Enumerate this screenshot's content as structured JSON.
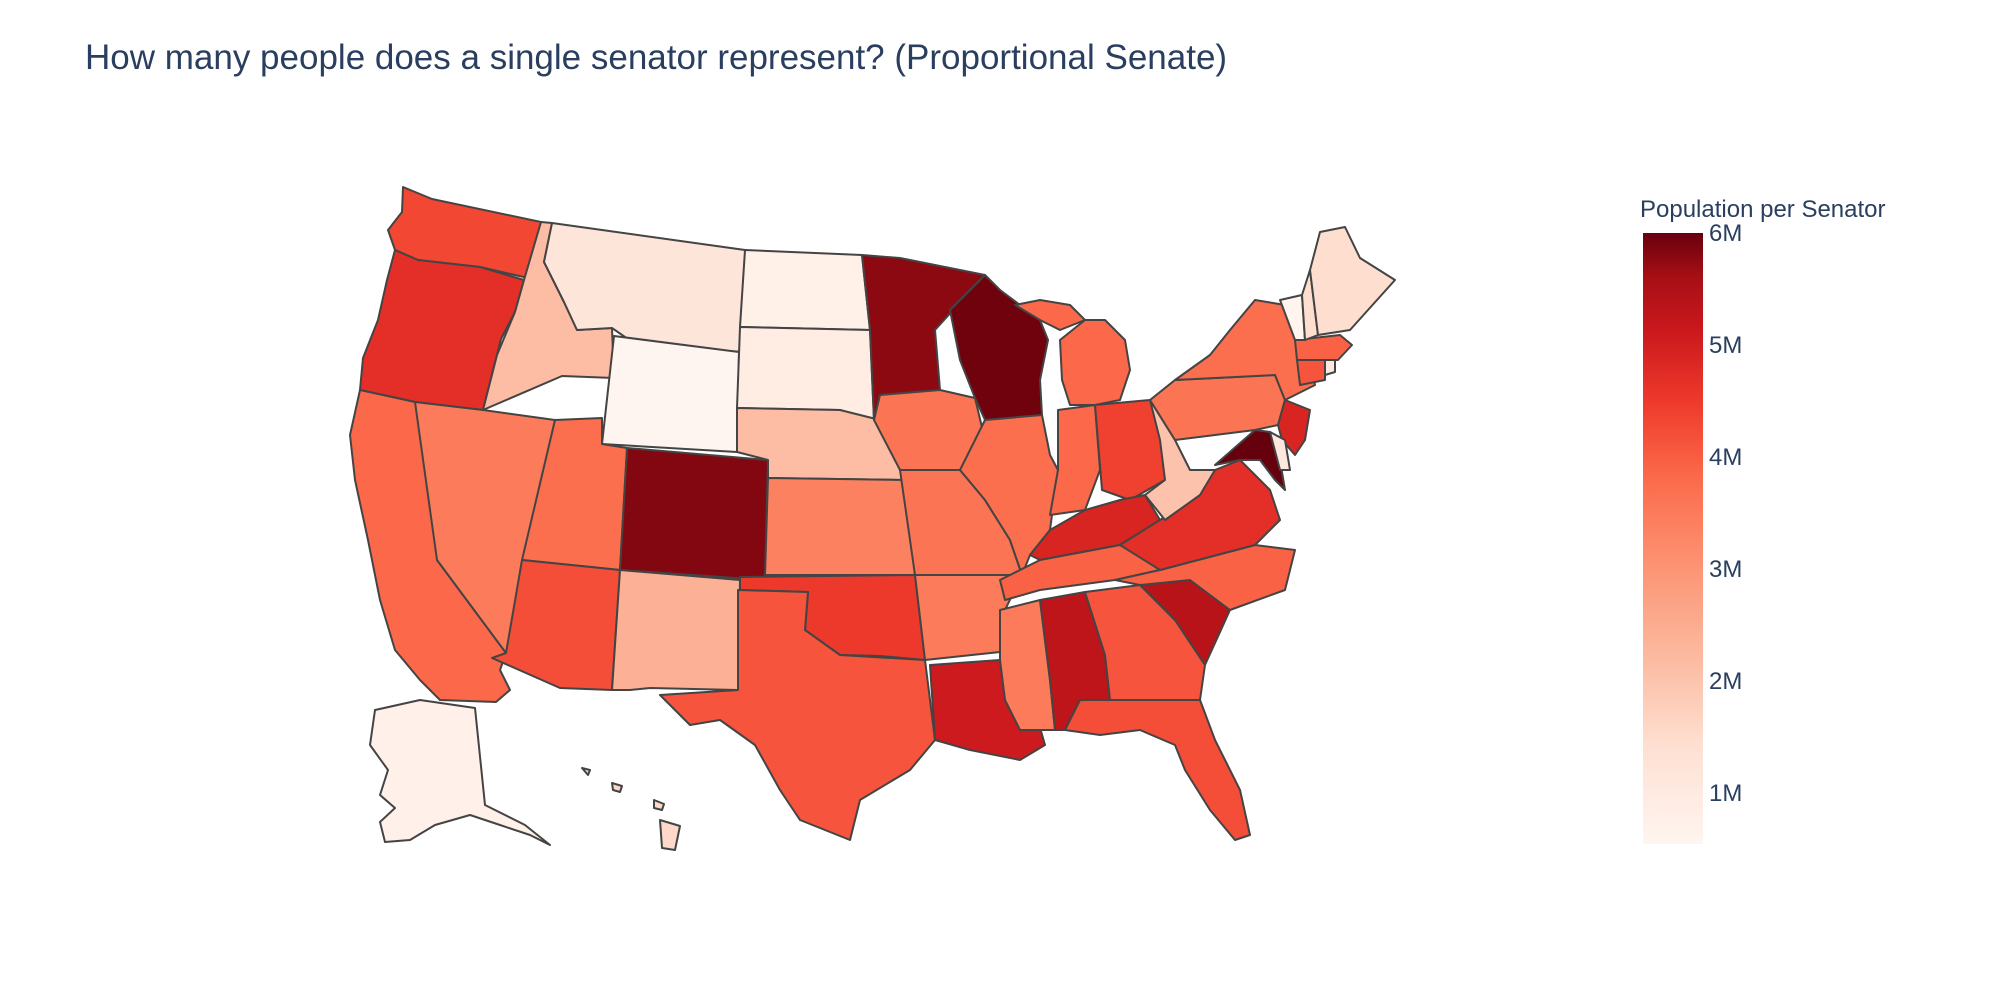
{
  "title": "How many people does a single senator represent? (Proportional Senate)",
  "colorbar": {
    "title": "Population per Senator",
    "ticks": [
      "6M",
      "5M",
      "4M",
      "3M",
      "2M",
      "1M"
    ],
    "range_millions": [
      0.58,
      6.0
    ],
    "colorscale": [
      "#fff5f0",
      "#fee0d2",
      "#fcbba1",
      "#fc9272",
      "#fb6a4a",
      "#ef3b2c",
      "#cb181d",
      "#a50f15",
      "#67000d"
    ]
  },
  "map": {
    "scope": "usa",
    "legend_position": "right",
    "states": [
      {
        "code": "WA",
        "value_millions": 3.8
      },
      {
        "code": "OR",
        "value_millions": 4.2
      },
      {
        "code": "CA",
        "value_millions": 3.3
      },
      {
        "code": "NV",
        "value_millions": 3.0
      },
      {
        "code": "ID",
        "value_millions": 1.9
      },
      {
        "code": "MT",
        "value_millions": 1.1
      },
      {
        "code": "WY",
        "value_millions": 0.58
      },
      {
        "code": "UT",
        "value_millions": 3.2
      },
      {
        "code": "AZ",
        "value_millions": 3.7
      },
      {
        "code": "CO",
        "value_millions": 5.7
      },
      {
        "code": "NM",
        "value_millions": 2.1
      },
      {
        "code": "ND",
        "value_millions": 0.75
      },
      {
        "code": "SD",
        "value_millions": 0.88
      },
      {
        "code": "NE",
        "value_millions": 1.9
      },
      {
        "code": "KS",
        "value_millions": 2.9
      },
      {
        "code": "OK",
        "value_millions": 4.0
      },
      {
        "code": "TX",
        "value_millions": 3.6
      },
      {
        "code": "MN",
        "value_millions": 5.6
      },
      {
        "code": "IA",
        "value_millions": 3.1
      },
      {
        "code": "MO",
        "value_millions": 3.1
      },
      {
        "code": "AR",
        "value_millions": 3.0
      },
      {
        "code": "LA",
        "value_millions": 4.6
      },
      {
        "code": "WI",
        "value_millions": 5.9
      },
      {
        "code": "IL",
        "value_millions": 3.2
      },
      {
        "code": "MI",
        "value_millions": 3.3
      },
      {
        "code": "IN",
        "value_millions": 3.3
      },
      {
        "code": "OH",
        "value_millions": 3.9
      },
      {
        "code": "KY",
        "value_millions": 4.4
      },
      {
        "code": "TN",
        "value_millions": 3.4
      },
      {
        "code": "MS",
        "value_millions": 3.0
      },
      {
        "code": "AL",
        "value_millions": 4.9
      },
      {
        "code": "GA",
        "value_millions": 3.6
      },
      {
        "code": "FL",
        "value_millions": 3.7
      },
      {
        "code": "SC",
        "value_millions": 5.0
      },
      {
        "code": "NC",
        "value_millions": 3.4
      },
      {
        "code": "VA",
        "value_millions": 4.2
      },
      {
        "code": "WV",
        "value_millions": 1.8
      },
      {
        "code": "PA",
        "value_millions": 3.1
      },
      {
        "code": "NY",
        "value_millions": 3.2
      },
      {
        "code": "NJ",
        "value_millions": 4.4
      },
      {
        "code": "MD",
        "value_millions": 6.0
      },
      {
        "code": "DE",
        "value_millions": 1.0
      },
      {
        "code": "CT",
        "value_millions": 3.6
      },
      {
        "code": "RI",
        "value_millions": 1.0
      },
      {
        "code": "MA",
        "value_millions": 3.4
      },
      {
        "code": "VT",
        "value_millions": 0.62
      },
      {
        "code": "NH",
        "value_millions": 1.3
      },
      {
        "code": "ME",
        "value_millions": 1.3
      },
      {
        "code": "AK",
        "value_millions": 0.73
      },
      {
        "code": "HI",
        "value_millions": 1.4
      }
    ]
  }
}
